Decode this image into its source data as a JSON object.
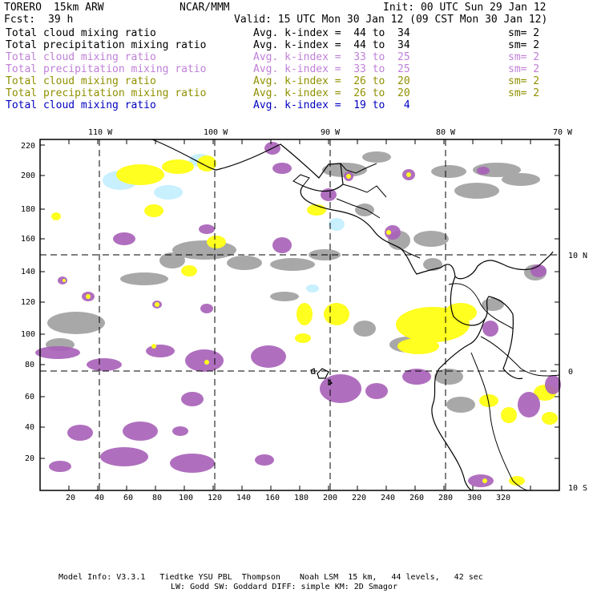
{
  "header": {
    "model": "TORERO",
    "resolution": "15km ARW",
    "org": "NCAR/MMM",
    "init": "Init: 00 UTC Sun 29 Jan 12",
    "fcst_label": "Fcst:",
    "fcst_value": "39 h",
    "valid": "Valid: 15 UTC Mon 30 Jan 12 (09 CST Mon 30 Jan 12)"
  },
  "legend": [
    {
      "field": "Total cloud mixing ratio",
      "kindex": "Avg. k-index =  44 to  34",
      "sm": "sm= 2",
      "color": "#000000"
    },
    {
      "field": "Total precipitation mixing ratio",
      "kindex": "Avg. k-index =  44 to  34",
      "sm": "sm= 2",
      "color": "#000000"
    },
    {
      "field": "Total cloud mixing ratio",
      "kindex": "Avg. k-index =  33 to  25",
      "sm": "sm= 2",
      "color": "#c080d8"
    },
    {
      "field": "Total precipitation mixing ratio",
      "kindex": "Avg. k-index =  33 to  25",
      "sm": "sm= 2",
      "color": "#c080d8"
    },
    {
      "field": "Total cloud mixing ratio",
      "kindex": "Avg. k-index =  26 to  20",
      "sm": "sm= 2",
      "color": "#909000"
    },
    {
      "field": "Total precipitation mixing ratio",
      "kindex": "Avg. k-index =  26 to  20",
      "sm": "sm= 2",
      "color": "#909000"
    },
    {
      "field": "Total cloud mixing ratio",
      "kindex": "Avg. k-index =  19 to   4",
      "sm": "",
      "color": "#0000c0"
    }
  ],
  "axes": {
    "lon_labels": [
      "110 W",
      "100 W",
      "90 W",
      "80 W",
      "70 W"
    ],
    "lat_labels": [
      "10 N",
      "0",
      "10 S"
    ],
    "x_ticks": [
      "20",
      "40",
      "60",
      "80",
      "100",
      "120",
      "140",
      "160",
      "180",
      "200",
      "220",
      "240",
      "260",
      "280",
      "300",
      "320"
    ],
    "y_ticks": [
      "220",
      "200",
      "180",
      "160",
      "140",
      "120",
      "100",
      "80",
      "60",
      "40",
      "20"
    ]
  },
  "footer": {
    "line1": "Model Info: V3.3.1   Tiedtke YSU PBL  Thompson    Noah LSM  15 km,   44 levels,   42 sec",
    "line2": "LW: Godd SW: Goddard DIFF: simple KM: 2D Smagor"
  },
  "colors": {
    "gray": "#9a9a9a",
    "purple": "#a860b8",
    "yellow": "#ffff20",
    "cyan": "#c8f0ff",
    "coast": "#000000"
  }
}
